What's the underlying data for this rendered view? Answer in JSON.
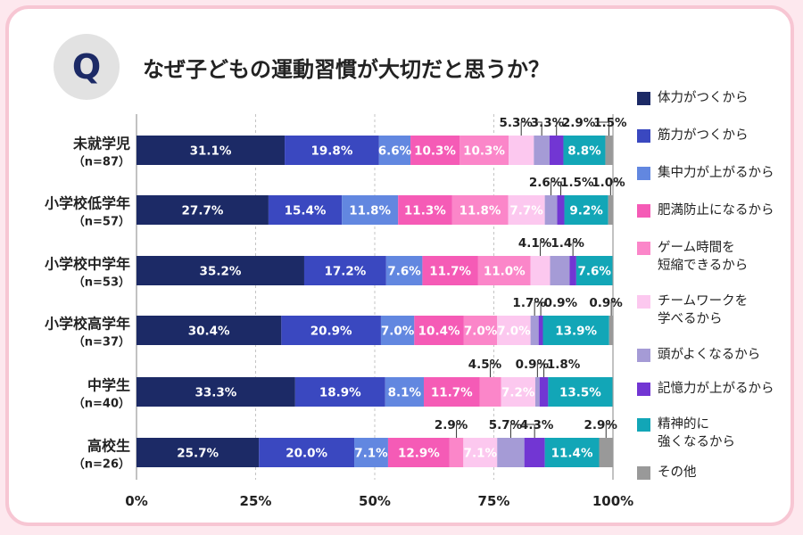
{
  "header": {
    "q_badge": "Q",
    "title": "なぜ子どもの運動習慣が大切だと思うか？"
  },
  "colors": [
    "#1c2a66",
    "#3a48c0",
    "#6287e0",
    "#f55bb6",
    "#fb86c9",
    "#fcc8ef",
    "#a59bd6",
    "#7236d3",
    "#12a6b7",
    "#999999"
  ],
  "chart_data": {
    "type": "bar",
    "orientation": "horizontal",
    "stacked": true,
    "title": "なぜ子どもの運動習慣が大切だと思うか？",
    "xlim": [
      0,
      100
    ],
    "x_ticks": [
      "0%",
      "25%",
      "50%",
      "75%",
      "100%"
    ],
    "categories": [
      {
        "name": "未就学児",
        "n": "（n=87）"
      },
      {
        "name": "小学校低学年",
        "n": "（n=57）"
      },
      {
        "name": "小学校中学年",
        "n": "（n=53）"
      },
      {
        "name": "小学校高学年",
        "n": "（n=37）"
      },
      {
        "name": "中学生",
        "n": "（n=40）"
      },
      {
        "name": "高校生",
        "n": "（n=26）"
      }
    ],
    "series": [
      {
        "name": "体力がつくから",
        "values": [
          31.1,
          27.7,
          35.2,
          30.4,
          33.3,
          25.7
        ]
      },
      {
        "name": "筋力がつくから",
        "values": [
          19.8,
          15.4,
          17.2,
          20.9,
          18.9,
          20.0
        ]
      },
      {
        "name": "集中力が上がるから",
        "values": [
          6.6,
          11.8,
          7.6,
          7.0,
          8.1,
          7.1
        ]
      },
      {
        "name": "肥満防止になるから",
        "values": [
          10.3,
          11.3,
          11.7,
          10.4,
          11.7,
          12.9
        ]
      },
      {
        "name": "ゲーム時間を\n短縮できるから",
        "values": [
          10.3,
          11.8,
          11.0,
          7.0,
          4.5,
          2.9
        ]
      },
      {
        "name": "チームワークを\n学べるから",
        "values": [
          5.3,
          7.7,
          4.1,
          7.0,
          7.2,
          7.1
        ]
      },
      {
        "name": "頭がよくなるから",
        "values": [
          3.3,
          2.6,
          4.1,
          1.7,
          0.9,
          5.7
        ]
      },
      {
        "name": "記憶力が上がるから",
        "values": [
          2.9,
          1.5,
          1.4,
          0.9,
          1.8,
          4.3
        ]
      },
      {
        "name": "精神的に\n強くなるから",
        "values": [
          8.8,
          9.2,
          7.6,
          13.9,
          13.5,
          11.4
        ]
      },
      {
        "name": "その他",
        "values": [
          1.5,
          1.0,
          0.0,
          0.9,
          0.0,
          2.9
        ]
      }
    ],
    "data_labels": [
      [
        "31.1%",
        "19.8%",
        "6.6%",
        "10.3%",
        "10.3%",
        "5.3%",
        "3.3%",
        "2.9%",
        "8.8%",
        "1.5%"
      ],
      [
        "27.7%",
        "15.4%",
        "11.8%",
        "11.3%",
        "11.8%",
        "7.7%",
        "2.6%",
        "1.5%",
        "9.2%",
        "1.0%"
      ],
      [
        "35.2%",
        "17.2%",
        "7.6%",
        "11.7%",
        "11.0%",
        "4.1%",
        "",
        "1.4%",
        "7.6%",
        ""
      ],
      [
        "30.4%",
        "20.9%",
        "7.0%",
        "10.4%",
        "7.0%",
        "7.0%",
        "1.7%",
        "0.9%",
        "13.9%",
        "0.9%"
      ],
      [
        "33.3%",
        "18.9%",
        "8.1%",
        "11.7%",
        "4.5%",
        "7.2%",
        "0.9%",
        "1.8%",
        "13.5%",
        ""
      ],
      [
        "25.7%",
        "20.0%",
        "7.1%",
        "12.9%",
        "2.9%",
        "7.1%",
        "5.7%",
        "4.3%",
        "11.4%",
        "2.9%"
      ]
    ],
    "legend_position": "right"
  }
}
